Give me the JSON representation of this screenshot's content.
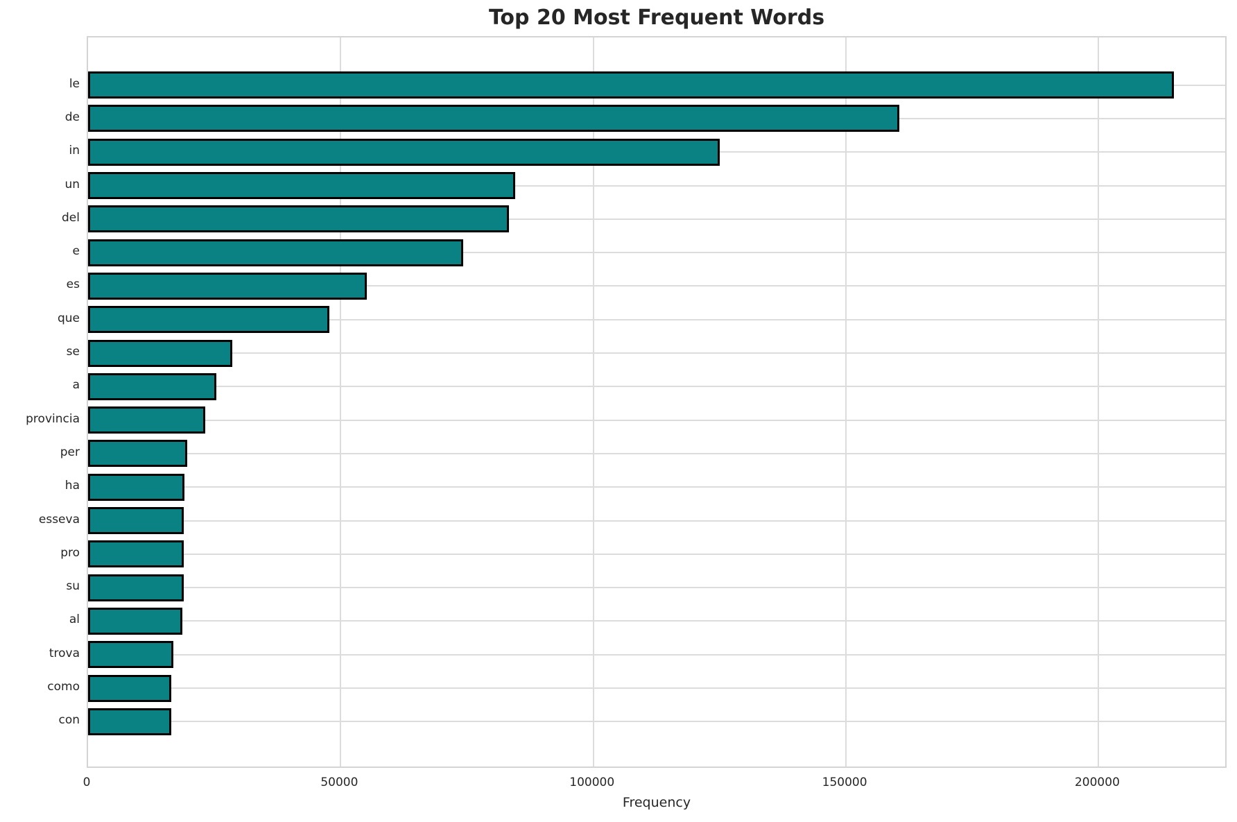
{
  "title": "Top 20 Most Frequent Words",
  "colors": {
    "bar_fill": "#0a8183",
    "bar_edge": "#000000",
    "grid": "#dcdcdc",
    "spine": "#d4d4d4",
    "text": "#262626",
    "background": "#ffffff"
  },
  "chart_data": {
    "type": "bar",
    "orientation": "horizontal",
    "title": "Top 20 Most Frequent Words",
    "xlabel": "Frequency",
    "ylabel": "",
    "categories": [
      "le",
      "de",
      "in",
      "un",
      "del",
      "e",
      "es",
      "que",
      "se",
      "a",
      "provincia",
      "per",
      "ha",
      "esseva",
      "pro",
      "su",
      "al",
      "trova",
      "como",
      "con"
    ],
    "values": [
      214900,
      160500,
      125000,
      84500,
      83300,
      74200,
      55100,
      47700,
      28500,
      25400,
      23200,
      19600,
      19100,
      19000,
      18950,
      18900,
      18650,
      16900,
      16500,
      16400
    ],
    "xlim": [
      0,
      225600
    ],
    "x_ticks": [
      0,
      50000,
      100000,
      150000,
      200000
    ],
    "x_tick_labels": [
      "0",
      "50000",
      "100000",
      "150000",
      "200000"
    ],
    "grid": true,
    "legend": null
  }
}
